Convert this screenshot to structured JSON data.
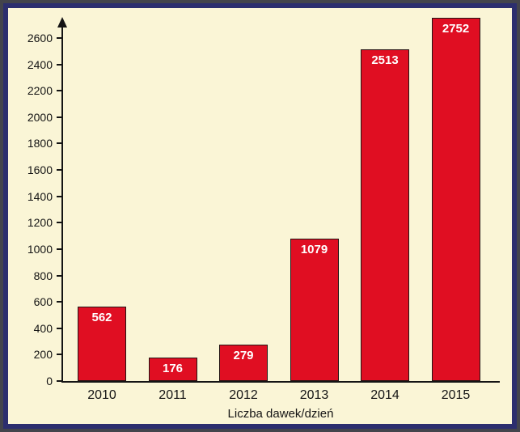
{
  "frame": {
    "outer_color": "#43444c",
    "border_color": "#2c2e6e",
    "background": "#faf5d6"
  },
  "chart_data": {
    "type": "bar",
    "categories": [
      "2010",
      "2011",
      "2012",
      "2013",
      "2014",
      "2015"
    ],
    "values": [
      562,
      176,
      279,
      1079,
      2513,
      2752
    ],
    "title": "",
    "xlabel": "Liczba dawek/dzień",
    "ylabel": "",
    "ylim": [
      0,
      2700
    ],
    "yticks": [
      0,
      200,
      400,
      600,
      800,
      1000,
      1200,
      1400,
      1600,
      1800,
      2000,
      2200,
      2400,
      2600
    ],
    "grid": false,
    "legend": false,
    "bar_color": "#e00e22",
    "bar_border_color": "#221414",
    "value_label_color": "#ffffff",
    "axis_color": "#141414",
    "tick_label_color": "#141414"
  }
}
